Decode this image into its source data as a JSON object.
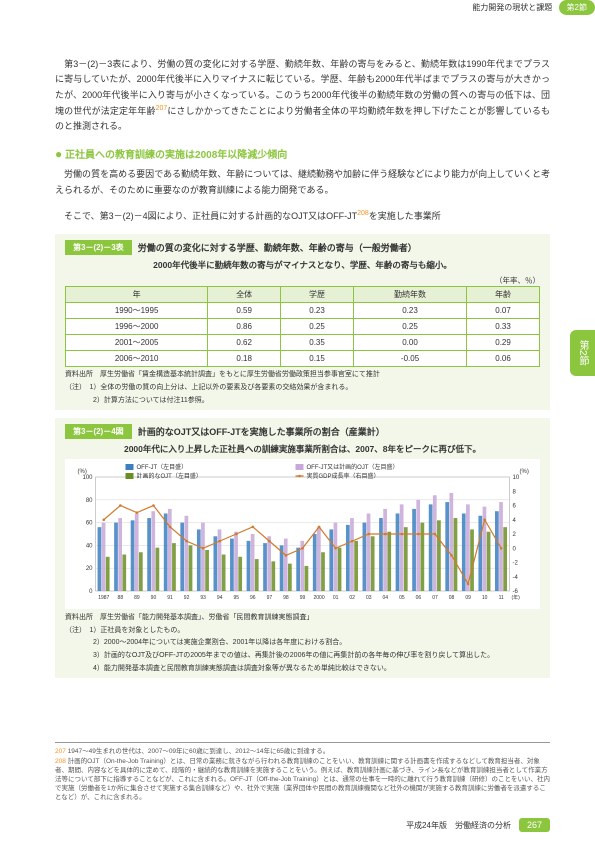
{
  "header": {
    "running_title": "能力開発の現状と課題",
    "section_chip": "第2節"
  },
  "side_tab": "第2節",
  "paragraphs": {
    "p1": "　第3－(2)－3表により、労働の質の変化に対する学歴、勤続年数、年齢の寄与をみると、勤続年数は1990年代までプラスに寄与していたが、2000年代後半に入りマイナスに転じている。学歴、年齢も2000年代半ばまでプラスの寄与が大きかったが、2000年代後半に入り寄与が小さくなっている。このうち2000年代後半の勤続年数の労働の質への寄与の低下は、団塊の世代が法定定年年齢",
    "p1_sup": "207",
    "p1_tail": "にさしかかってきたことにより労働者全体の平均勤続年数を押し下げたことが影響しているものと推測される。",
    "h1": "正社員への教育訓練の実施は2008年以降減少傾向",
    "p2": "　労働の質を高める要因である勤続年数、年齢については、継続勤務や加齢に伴う経験などにより能力が向上していくと考えられるが、そのために重要なのが教育訓練による能力開発である。",
    "p3a": "　そこで、第3－(2)－4図により、正社員に対する計画的なOJT又はOFF-JT",
    "p3_sup": "208",
    "p3b": "を実施した事業所"
  },
  "table": {
    "chip": "第3－(2)－3表",
    "title": "労働の質の変化に対する学歴、勤続年数、年齢の寄与（一般労働者）",
    "subtitle": "2000年代後半に勤続年数の寄与がマイナスとなり、学歴、年齢の寄与も縮小。",
    "unit": "（年率、％）",
    "columns": [
      "年",
      "全体",
      "学歴",
      "勤続年数",
      "年齢"
    ],
    "rows": [
      [
        "1990～1995",
        "0.59",
        "0.23",
        "0.23",
        "0.07"
      ],
      [
        "1996～2000",
        "0.86",
        "0.25",
        "0.25",
        "0.33"
      ],
      [
        "2001～2005",
        "0.62",
        "0.35",
        "0.00",
        "0.29"
      ],
      [
        "2006～2010",
        "0.18",
        "0.15",
        "-0.05",
        "0.06"
      ]
    ],
    "source": "資料出所　厚生労働省「賃金構造基本統計調査」をもとに厚生労働省労働政策担当参事官室にて推計",
    "note1": "（注）　1）全体の労働の質の向上分は、上記以外の要素及び各要素の交絡効果が含まれる。",
    "note2": "　　　　2）計算方法については付注11参照。"
  },
  "figure": {
    "chip": "第3－(2)－4図",
    "title": "計画的なOJT又はOFF-JTを実施した事業所の割合（産業計）",
    "subtitle": "2000年代に入り上昇した正社員への訓練実施事業所割合は、2007、8年をピークに再び低下。",
    "chart": {
      "type": "bar-line",
      "x_labels": [
        "1987",
        "88",
        "89",
        "90",
        "91",
        "92",
        "93",
        "94",
        "95",
        "96",
        "97",
        "98",
        "99",
        "2000",
        "01",
        "02",
        "03",
        "04",
        "05",
        "06",
        "07",
        "08",
        "09",
        "10",
        "11"
      ],
      "left_axis": {
        "label": "(%)",
        "min": 0,
        "max": 100,
        "ticks": [
          0,
          20,
          40,
          60,
          80,
          100
        ]
      },
      "right_axis": {
        "label": "(%)",
        "min": -6,
        "max": 10,
        "ticks": [
          -6,
          -4,
          -2,
          0,
          2,
          4,
          6,
          8,
          10
        ]
      },
      "series": [
        {
          "name": "OFF-JT（左目盛）",
          "type": "bar",
          "color": "#3b7fbf",
          "values": [
            56,
            60,
            62,
            64,
            68,
            60,
            54,
            48,
            46,
            44,
            42,
            40,
            38,
            50,
            54,
            58,
            60,
            64,
            68,
            72,
            76,
            78,
            68,
            66,
            70
          ]
        },
        {
          "name": "OFF-JT又は計画的OJT（左目盛）",
          "type": "bar",
          "color": "#c7a8d8",
          "values": [
            60,
            64,
            68,
            70,
            72,
            66,
            60,
            54,
            52,
            50,
            48,
            46,
            44,
            56,
            60,
            64,
            68,
            72,
            76,
            80,
            84,
            86,
            76,
            74,
            78
          ]
        },
        {
          "name": "計画的なOJT（左目盛）",
          "type": "bar",
          "color": "#6b8e23",
          "values": [
            30,
            32,
            34,
            38,
            42,
            40,
            36,
            32,
            30,
            28,
            26,
            24,
            22,
            34,
            38,
            44,
            48,
            52,
            56,
            60,
            62,
            64,
            54,
            52,
            56
          ]
        },
        {
          "name": "実質GDP成長率（右目盛）",
          "type": "line",
          "color": "#d17a2b",
          "values": [
            4,
            6,
            5,
            6,
            3,
            1,
            0,
            1,
            2,
            3,
            1,
            -1,
            0,
            3,
            0,
            1,
            2,
            2,
            2,
            2,
            2,
            -1,
            -5,
            4,
            0
          ]
        }
      ],
      "grid_color": "#cccccc",
      "background_color": "#ffffff"
    },
    "source": "資料出所　厚生労働省「能力開発基本調査」、労働省「民間教育訓練実態調査」",
    "note1": "（注）　1）正社員を対象としたもの。",
    "note2": "　　　　2）2000～2004年については実施企業割合、2001年以降は各年度における割合。",
    "note3": "　　　　3）計画的なOJT及びOFF-JTの2005年までの値は、再集計後の2006年の値に再集計前の各年毎の伸び率を割り戻して算出した。",
    "note4": "　　　　4）能力開発基本調査と民間教育訓練実態調査は調査対象等が異なるため単純比較はできない。"
  },
  "footnotes": {
    "f207_num": "207",
    "f207": "1947～49生まれの世代は、2007～09年に60歳に到達し、2012～14年に65歳に到達する。",
    "f208_num": "208",
    "f208": "計画的OJT（On-the-Job Training）とは、日常の業務に就きながら行われる教育訓練のことをいい、教育訓練に関する計画書を作成するなどして教育担当者、対象者、期間、内容などを具体的に定めて、段階的・継続的な教育訓練を実施することをいう。例えば、教育訓練計画に基づき、ライン長などが教育訓練担当者として作業方法等について部下に指導することなどが、これに含まれる。OFF-JT（Off-the-Job Training）とは、通常の仕事を一時的に離れて行う教育訓練（研修）のことをいい、社内で実施（労働者を1か所に集合させて実施する集合訓練など）や、社外で実施（業界団体や民間の教育訓練機関など社外の機関が実施する教育訓練に労働者を派遣することなど）が、これに含まれる。"
  },
  "footer": {
    "text": "平成24年版　労働経済の分析",
    "page": "267"
  }
}
